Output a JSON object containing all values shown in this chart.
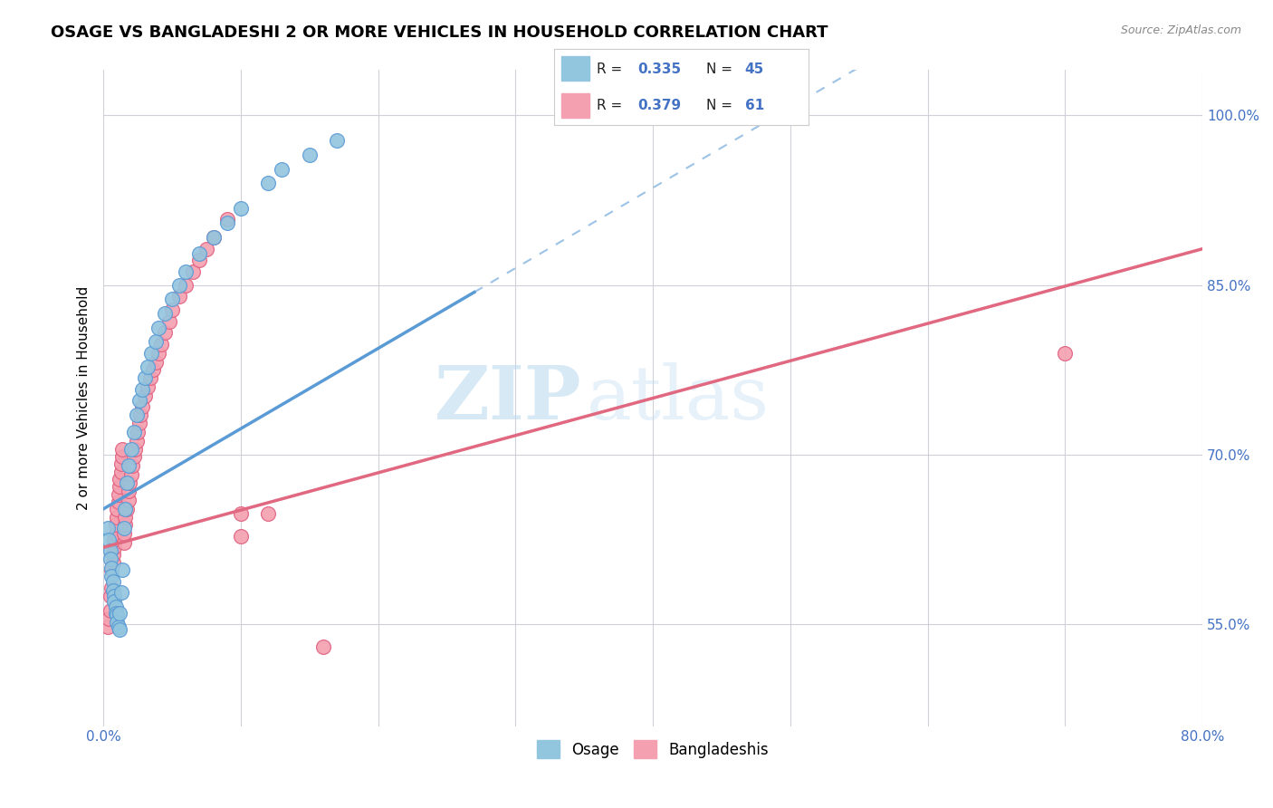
{
  "title": "OSAGE VS BANGLADESHI 2 OR MORE VEHICLES IN HOUSEHOLD CORRELATION CHART",
  "source": "Source: ZipAtlas.com",
  "ylabel": "2 or more Vehicles in Household",
  "xlim": [
    0.0,
    0.8
  ],
  "ylim": [
    0.46,
    1.04
  ],
  "xtick_positions": [
    0.0,
    0.1,
    0.2,
    0.3,
    0.4,
    0.5,
    0.6,
    0.7,
    0.8
  ],
  "xticklabels": [
    "0.0%",
    "",
    "",
    "",
    "",
    "",
    "",
    "",
    "80.0%"
  ],
  "ytick_positions": [
    0.55,
    0.7,
    0.85,
    1.0
  ],
  "yticklabels": [
    "55.0%",
    "70.0%",
    "85.0%",
    "100.0%"
  ],
  "osage_color": "#92C5DE",
  "osage_edge_color": "#5B9BD5",
  "bangla_color": "#F4A0B0",
  "bangla_edge_color": "#E06080",
  "trend_osage_color": "#5B9BD5",
  "trend_bangla_color": "#E06880",
  "watermark": "ZIPatlas",
  "tick_label_color": "#4472C4",
  "grid_color": "#D0D0D8",
  "osage_scatter_x": [
    0.003,
    0.004,
    0.005,
    0.005,
    0.006,
    0.006,
    0.007,
    0.007,
    0.008,
    0.008,
    0.009,
    0.009,
    0.01,
    0.01,
    0.011,
    0.012,
    0.012,
    0.013,
    0.014,
    0.015,
    0.016,
    0.017,
    0.018,
    0.02,
    0.022,
    0.024,
    0.026,
    0.028,
    0.03,
    0.032,
    0.035,
    0.038,
    0.04,
    0.045,
    0.05,
    0.055,
    0.06,
    0.07,
    0.08,
    0.09,
    0.1,
    0.12,
    0.13,
    0.15,
    0.17
  ],
  "osage_scatter_y": [
    0.635,
    0.625,
    0.615,
    0.608,
    0.6,
    0.593,
    0.588,
    0.58,
    0.575,
    0.57,
    0.565,
    0.56,
    0.558,
    0.552,
    0.548,
    0.545,
    0.56,
    0.578,
    0.598,
    0.635,
    0.652,
    0.675,
    0.69,
    0.705,
    0.72,
    0.735,
    0.748,
    0.758,
    0.768,
    0.778,
    0.79,
    0.8,
    0.812,
    0.825,
    0.838,
    0.85,
    0.862,
    0.878,
    0.892,
    0.905,
    0.918,
    0.94,
    0.952,
    0.965,
    0.978
  ],
  "bangla_scatter_x": [
    0.003,
    0.004,
    0.005,
    0.005,
    0.006,
    0.006,
    0.007,
    0.007,
    0.008,
    0.008,
    0.009,
    0.009,
    0.01,
    0.01,
    0.011,
    0.011,
    0.012,
    0.012,
    0.013,
    0.013,
    0.014,
    0.014,
    0.015,
    0.015,
    0.016,
    0.016,
    0.017,
    0.018,
    0.018,
    0.019,
    0.02,
    0.021,
    0.022,
    0.023,
    0.024,
    0.025,
    0.026,
    0.027,
    0.028,
    0.03,
    0.032,
    0.034,
    0.036,
    0.038,
    0.04,
    0.042,
    0.045,
    0.048,
    0.05,
    0.055,
    0.06,
    0.065,
    0.07,
    0.075,
    0.08,
    0.09,
    0.1,
    0.12,
    0.16,
    0.7,
    0.1
  ],
  "bangla_scatter_y": [
    0.548,
    0.555,
    0.562,
    0.575,
    0.582,
    0.598,
    0.605,
    0.612,
    0.618,
    0.625,
    0.63,
    0.638,
    0.645,
    0.652,
    0.658,
    0.665,
    0.672,
    0.678,
    0.685,
    0.692,
    0.698,
    0.705,
    0.622,
    0.63,
    0.638,
    0.645,
    0.652,
    0.66,
    0.668,
    0.675,
    0.682,
    0.69,
    0.698,
    0.705,
    0.712,
    0.72,
    0.728,
    0.735,
    0.742,
    0.752,
    0.76,
    0.768,
    0.775,
    0.782,
    0.79,
    0.798,
    0.808,
    0.818,
    0.828,
    0.84,
    0.85,
    0.862,
    0.872,
    0.882,
    0.892,
    0.908,
    0.628,
    0.648,
    0.53,
    0.79,
    0.648
  ],
  "trend_osage_x0": 0.0,
  "trend_osage_y0": 0.652,
  "trend_osage_x1": 0.3,
  "trend_osage_y1": 0.865,
  "trend_bangla_x0": 0.0,
  "trend_bangla_y0": 0.618,
  "trend_bangla_x1": 0.8,
  "trend_bangla_y1": 0.882
}
